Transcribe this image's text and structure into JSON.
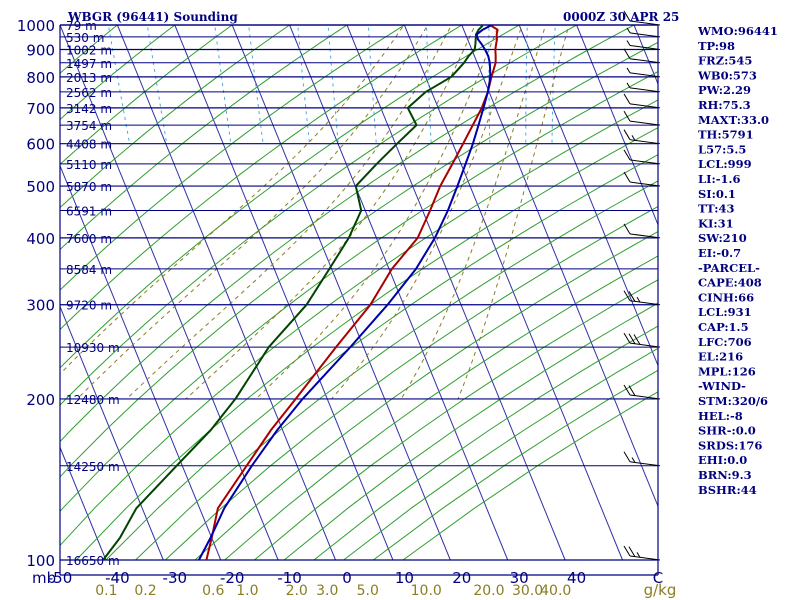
{
  "header": {
    "title": "WBGR (96441) Sounding",
    "time": "0000Z 30 APR 25"
  },
  "indices": [
    "WMO:96441",
    "TP:98",
    "FRZ:545",
    "WB0:573",
    "PW:2.29",
    "RH:75.3",
    "MAXT:33.0",
    "TH:5791",
    "L57:5.5",
    "LCL:999",
    "LI:-1.6",
    "SI:0.1",
    "TT:43",
    "KI:31",
    "SW:210",
    "EI:-0.7",
    "-PARCEL-",
    "CAPE:408",
    "CINH:66",
    "LCL:931",
    "CAP:1.5",
    "LFC:706",
    "EL:216",
    "MPL:126",
    "-WIND-",
    "STM:320/6",
    "HEL:-8",
    "SHR-:0.0",
    "SRDS:176",
    "EHI:0.0",
    "BRN:9.3",
    "BSHR:44"
  ],
  "chart_data": {
    "type": "line",
    "chart_kind": "skew-T log-P sounding",
    "xlabel": "",
    "ylabel": "",
    "y_scale": "log",
    "ylim": [
      1000,
      100
    ],
    "xlim": [
      -50,
      50
    ],
    "pressure_levels": [
      100,
      200,
      300,
      400,
      500,
      600,
      700,
      800,
      900,
      1000
    ],
    "pressure_tick_labels": [
      "100",
      "200",
      "300",
      "400",
      "500",
      "600",
      "700",
      "800",
      "900",
      "1000"
    ],
    "mb_label": "mb",
    "temperature_ticks": [
      -50,
      -40,
      -30,
      -20,
      -10,
      0,
      10,
      20,
      30,
      40
    ],
    "temperature_tick_labels": [
      "-50",
      "-40",
      "-30",
      "-20",
      "-10",
      "0",
      "10",
      "20",
      "30",
      "40"
    ],
    "temperature_unit_label": "C",
    "mixing_ratio_labels": [
      "0.1",
      "0.2",
      "0.6",
      "1.0",
      "2.0",
      "3.0",
      "5.0",
      "10.0",
      "20.0",
      "30.0",
      "40.0"
    ],
    "mixing_ratio_unit": "g/kg",
    "height_labels": [
      {
        "p": 100,
        "label": "16650 m"
      },
      {
        "p": 150,
        "label": "14250 m"
      },
      {
        "p": 200,
        "label": "12480 m"
      },
      {
        "p": 250,
        "label": "10930 m"
      },
      {
        "p": 300,
        "label": "9720 m"
      },
      {
        "p": 350,
        "label": "8584 m"
      },
      {
        "p": 400,
        "label": "7600 m"
      },
      {
        "p": 450,
        "label": "6591 m"
      },
      {
        "p": 500,
        "label": "5870 m"
      },
      {
        "p": 550,
        "label": "5110 m"
      },
      {
        "p": 600,
        "label": "4408 m"
      },
      {
        "p": 650,
        "label": "3754 m"
      },
      {
        "p": 700,
        "label": "3142 m"
      },
      {
        "p": 750,
        "label": "2562 m"
      },
      {
        "p": 800,
        "label": "2013 m"
      },
      {
        "p": 850,
        "label": "1497 m"
      },
      {
        "p": 900,
        "label": "1002 m"
      },
      {
        "p": 950,
        "label": "530 m"
      },
      {
        "p": 1000,
        "label": "79 m"
      }
    ],
    "series": [
      {
        "id": "temperature",
        "color": "#aa0000",
        "points": [
          [
            998,
            25.0
          ],
          [
            980,
            25.9
          ],
          [
            960,
            25.4
          ],
          [
            940,
            25.1
          ],
          [
            920,
            24.6
          ],
          [
            900,
            24.1
          ],
          [
            875,
            23.7
          ],
          [
            850,
            23.2
          ],
          [
            800,
            21.5
          ],
          [
            750,
            19.8
          ],
          [
            700,
            17.6
          ],
          [
            650,
            14.8
          ],
          [
            600,
            11.8
          ],
          [
            550,
            8.5
          ],
          [
            500,
            4.8
          ],
          [
            450,
            1.3
          ],
          [
            400,
            -2.8
          ],
          [
            350,
            -9.5
          ],
          [
            300,
            -15.8
          ],
          [
            250,
            -24.8
          ],
          [
            200,
            -35.5
          ],
          [
            175,
            -42.0
          ],
          [
            150,
            -48.8
          ],
          [
            125,
            -56.8
          ],
          [
            110,
            -60.0
          ],
          [
            100,
            -62.5
          ]
        ]
      },
      {
        "id": "dewpoint",
        "color": "#004400",
        "points": [
          [
            998,
            23.6
          ],
          [
            980,
            22.6
          ],
          [
            960,
            21.8
          ],
          [
            940,
            21.4
          ],
          [
            920,
            21.0
          ],
          [
            900,
            20.5
          ],
          [
            875,
            19.0
          ],
          [
            850,
            17.7
          ],
          [
            800,
            14.5
          ],
          [
            750,
            9.0
          ],
          [
            700,
            4.7
          ],
          [
            650,
            5.0
          ],
          [
            600,
            0.3
          ],
          [
            550,
            -4.7
          ],
          [
            500,
            -9.9
          ],
          [
            450,
            -10.7
          ],
          [
            400,
            -14.8
          ],
          [
            350,
            -20.4
          ],
          [
            300,
            -26.9
          ],
          [
            250,
            -36.5
          ],
          [
            200,
            -46.0
          ],
          [
            175,
            -52.5
          ],
          [
            150,
            -61.0
          ],
          [
            125,
            -71.0
          ],
          [
            110,
            -76.0
          ],
          [
            100,
            -80.5
          ]
        ]
      },
      {
        "id": "parcel",
        "color": "#0000aa",
        "points": [
          [
            998,
            25.0
          ],
          [
            980,
            23.3
          ],
          [
            960,
            21.9
          ],
          [
            940,
            21.8
          ],
          [
            920,
            22.1
          ],
          [
            900,
            22.3
          ],
          [
            875,
            22.4
          ],
          [
            850,
            22.2
          ],
          [
            800,
            21.3
          ],
          [
            750,
            19.8
          ],
          [
            700,
            17.9
          ],
          [
            650,
            15.8
          ],
          [
            600,
            13.5
          ],
          [
            550,
            10.8
          ],
          [
            500,
            7.8
          ],
          [
            450,
            4.4
          ],
          [
            400,
            0.2
          ],
          [
            350,
            -5.3
          ],
          [
            300,
            -12.8
          ],
          [
            250,
            -22.3
          ],
          [
            200,
            -34.3
          ],
          [
            175,
            -40.9
          ],
          [
            150,
            -47.9
          ],
          [
            125,
            -55.7
          ],
          [
            110,
            -60.2
          ],
          [
            100,
            -63.8
          ]
        ]
      }
    ],
    "grid": true
  }
}
